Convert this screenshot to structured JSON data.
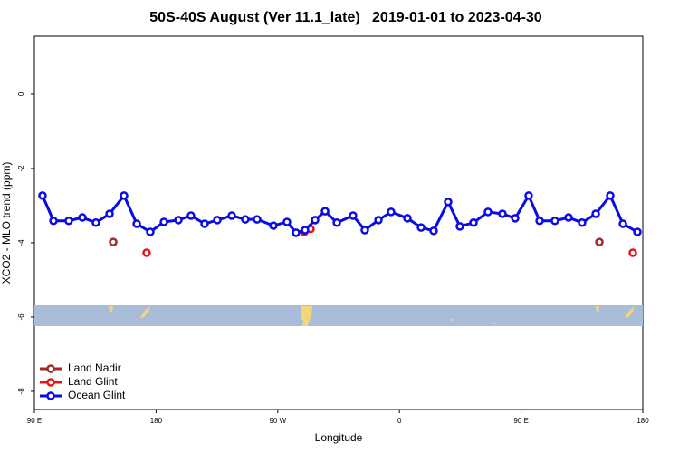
{
  "chart_data": {
    "type": "line",
    "title": "50S-40S August (Ver 11.1_late)   2019-01-01 to 2023-04-30",
    "x_label": "Longitude",
    "y_label": "XCO2 - MLO trend (ppm)",
    "xlim": [
      90,
      540
    ],
    "xticks": [
      {
        "value": 90,
        "label": "90 E"
      },
      {
        "value": 180,
        "label": "180"
      },
      {
        "value": 270,
        "label": "90 W"
      },
      {
        "value": 360,
        "label": "0"
      },
      {
        "value": 450,
        "label": "90 E"
      },
      {
        "value": 540,
        "label": "180"
      }
    ],
    "ylim": [
      -8.49,
      1.56
    ],
    "yticks": [
      0,
      -2,
      -4,
      -6,
      -8
    ],
    "legend": "bottom-left",
    "series": [
      {
        "name": "Land Nadir",
        "color": "#a0282d",
        "line": false,
        "x": [
          148.3,
          507.9
        ],
        "values": [
          -3.98,
          -3.98
        ]
      },
      {
        "name": "Land Glint",
        "color": "#ee1111",
        "line": false,
        "x": [
          173.0,
          289.6,
          294.2,
          532.6
        ],
        "values": [
          -4.27,
          -3.71,
          -3.63,
          -4.27
        ]
      },
      {
        "name": "Ocean Glint",
        "color": "#0a0ae6",
        "line": true,
        "x": [
          96.0,
          104.1,
          115.4,
          125.5,
          135.5,
          145.6,
          156.3,
          165.7,
          175.7,
          185.8,
          196.5,
          205.8,
          215.9,
          225.3,
          236.0,
          246.0,
          254.7,
          266.8,
          276.8,
          283.5,
          290.2,
          297.6,
          305.0,
          313.7,
          325.7,
          334.4,
          344.5,
          353.8,
          365.9,
          376.0,
          385.3,
          396.0,
          404.7,
          414.8,
          425.5,
          436.2,
          445.6,
          455.6,
          463.7,
          475.0,
          485.1,
          495.1,
          505.2,
          515.9,
          525.3,
          536.0
        ],
        "values": [
          -2.73,
          -3.41,
          -3.41,
          -3.32,
          -3.46,
          -3.22,
          -2.73,
          -3.49,
          -3.71,
          -3.44,
          -3.39,
          -3.27,
          -3.49,
          -3.39,
          -3.27,
          -3.37,
          -3.37,
          -3.54,
          -3.44,
          -3.73,
          -3.66,
          -3.39,
          -3.15,
          -3.46,
          -3.27,
          -3.66,
          -3.39,
          -3.17,
          -3.34,
          -3.59,
          -3.68,
          -2.9,
          -3.56,
          -3.46,
          -3.17,
          -3.22,
          -3.34,
          -2.73,
          -3.41,
          -3.41,
          -3.32,
          -3.46,
          -3.22,
          -2.73,
          -3.49,
          -3.71
        ]
      }
    ]
  }
}
